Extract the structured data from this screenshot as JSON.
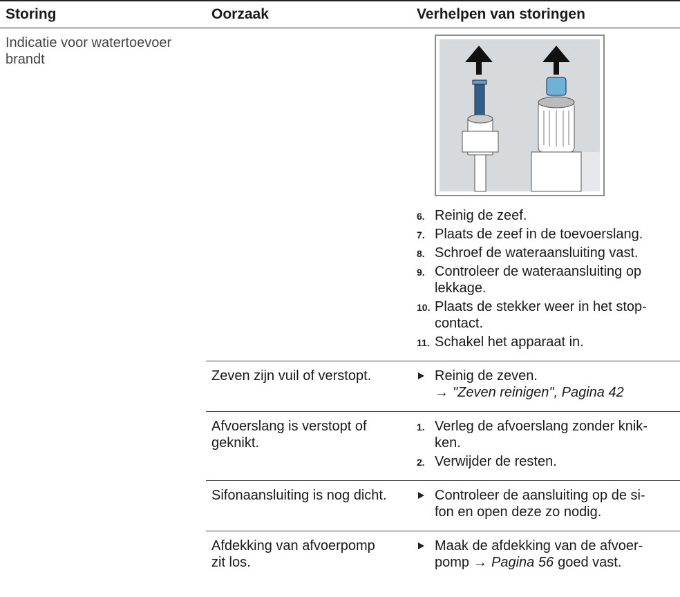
{
  "table": {
    "header": [
      "Storing",
      "Oorzaak",
      "Verhelpen van storingen"
    ],
    "rows": [
      {
        "fault": [
          "Indicatie voor watertoevoer",
          "brandt"
        ],
        "steps": [
          {
            "n": "6.",
            "lines": [
              "Reinig de zeef."
            ]
          },
          {
            "n": "7.",
            "lines": [
              "Plaats de zeef in de toevoerslang."
            ]
          },
          {
            "n": "8.",
            "lines": [
              "Schroef de wateraansluiting vast."
            ]
          },
          {
            "n": "9.",
            "lines": [
              "Controleer de wateraansluiting op",
              "lekkage."
            ]
          },
          {
            "n": "10.",
            "lines": [
              "Plaats de stekker weer in het stop-",
              "contact."
            ]
          },
          {
            "n": "11.",
            "lines": [
              "Schakel het apparaat in."
            ]
          }
        ]
      },
      {
        "cause": [
          "Zeven zijn vuil of verstopt."
        ],
        "bullet": {
          "lines": [
            "Reinig de zeven."
          ],
          "ref": {
            "arrow": "→",
            "text": "\"Zeven reinigen\", Pagina 42"
          }
        }
      },
      {
        "cause": [
          "Afvoerslang is verstopt of",
          "geknikt."
        ],
        "steps": [
          {
            "n": "1.",
            "lines": [
              "Verleg de afvoerslang zonder knik-",
              "ken."
            ]
          },
          {
            "n": "2.",
            "lines": [
              "Verwijder de resten."
            ]
          }
        ]
      },
      {
        "cause": [
          "Sifonaansluiting is nog dicht."
        ],
        "bullet": {
          "lines": [
            "Controleer de aansluiting op de si-",
            "fon en open deze zo nodig."
          ]
        }
      },
      {
        "cause": [
          "Afdekking van afvoerpomp",
          "zit los."
        ],
        "bullet": {
          "lines": [
            "Maak de afdekking van de afvoer-"
          ],
          "ref_line": {
            "pre": "pomp",
            "arrow": "→",
            "link": "Pagina 56",
            "post": "goed vast."
          }
        }
      }
    ]
  }
}
